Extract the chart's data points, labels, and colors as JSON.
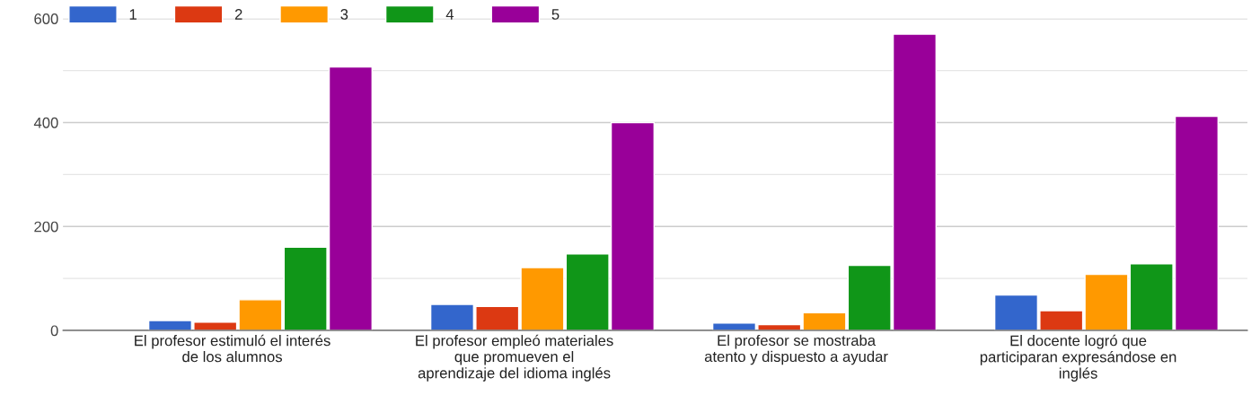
{
  "chart_data": {
    "type": "bar",
    "categories": [
      "El profesor estimuló el interés\nde los alumnos",
      "El profesor empleó materiales\nque promueven el\naprendizaje del idioma inglés",
      "El profesor se mostraba\natento y dispuesto a ayudar",
      "El docente logró que\nparticiparan expresándose en\ninglés"
    ],
    "series": [
      {
        "name": "1",
        "color": "#3366cc",
        "values": [
          19,
          50,
          14,
          68
        ]
      },
      {
        "name": "2",
        "color": "#dc3912",
        "values": [
          16,
          46,
          11,
          38
        ]
      },
      {
        "name": "3",
        "color": "#ff9900",
        "values": [
          59,
          121,
          34,
          108
        ]
      },
      {
        "name": "4",
        "color": "#109618",
        "values": [
          160,
          147,
          125,
          128
        ]
      },
      {
        "name": "5",
        "color": "#990099",
        "values": [
          507,
          400,
          570,
          412
        ]
      }
    ],
    "ylim": [
      0,
      600
    ],
    "yticks": [
      0,
      {
        "value": 100,
        "label": null
      },
      200,
      {
        "value": 300,
        "label": null
      },
      400,
      {
        "value": 500,
        "label": null
      },
      600
    ],
    "grid": "y",
    "legend": "top left"
  }
}
